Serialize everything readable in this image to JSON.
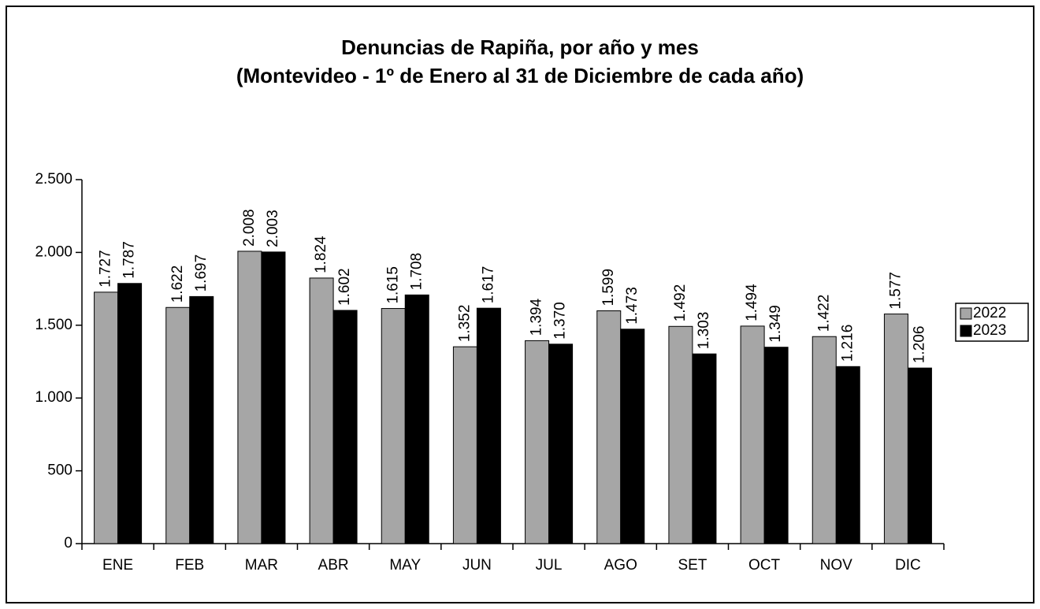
{
  "chart_data": {
    "type": "bar",
    "title": "Denuncias de Rapiña, por año y mes",
    "subtitle": "(Montevideo - 1º de Enero al 31 de Diciembre de cada año)",
    "categories": [
      "ENE",
      "FEB",
      "MAR",
      "ABR",
      "MAY",
      "JUN",
      "JUL",
      "AGO",
      "SET",
      "OCT",
      "NOV",
      "DIC"
    ],
    "series": [
      {
        "name": "2022",
        "color": "#a6a6a6",
        "values": [
          1727,
          1622,
          2008,
          1824,
          1615,
          1352,
          1394,
          1599,
          1492,
          1494,
          1422,
          1577
        ],
        "value_labels": [
          "1.727",
          "1.622",
          "2.008",
          "1.824",
          "1.615",
          "1.352",
          "1.394",
          "1.599",
          "1.492",
          "1.494",
          "1.422",
          "1.577"
        ]
      },
      {
        "name": "2023",
        "color": "#000000",
        "values": [
          1787,
          1697,
          2003,
          1602,
          1708,
          1617,
          1370,
          1473,
          1303,
          1349,
          1216,
          1206
        ],
        "value_labels": [
          "1.787",
          "1.697",
          "2.003",
          "1.602",
          "1.708",
          "1.617",
          "1.370",
          "1.473",
          "1.303",
          "1.349",
          "1.216",
          "1.206"
        ]
      }
    ],
    "ylim": [
      0,
      2500
    ],
    "yticks": [
      0,
      500,
      {
        "value": 1000,
        "label": "1.000"
      },
      {
        "value": 1500,
        "label": "1.500"
      },
      {
        "value": 2000,
        "label": "2.000"
      },
      {
        "value": 2500,
        "label": "2.500"
      }
    ],
    "grid": false,
    "legend": "right"
  }
}
